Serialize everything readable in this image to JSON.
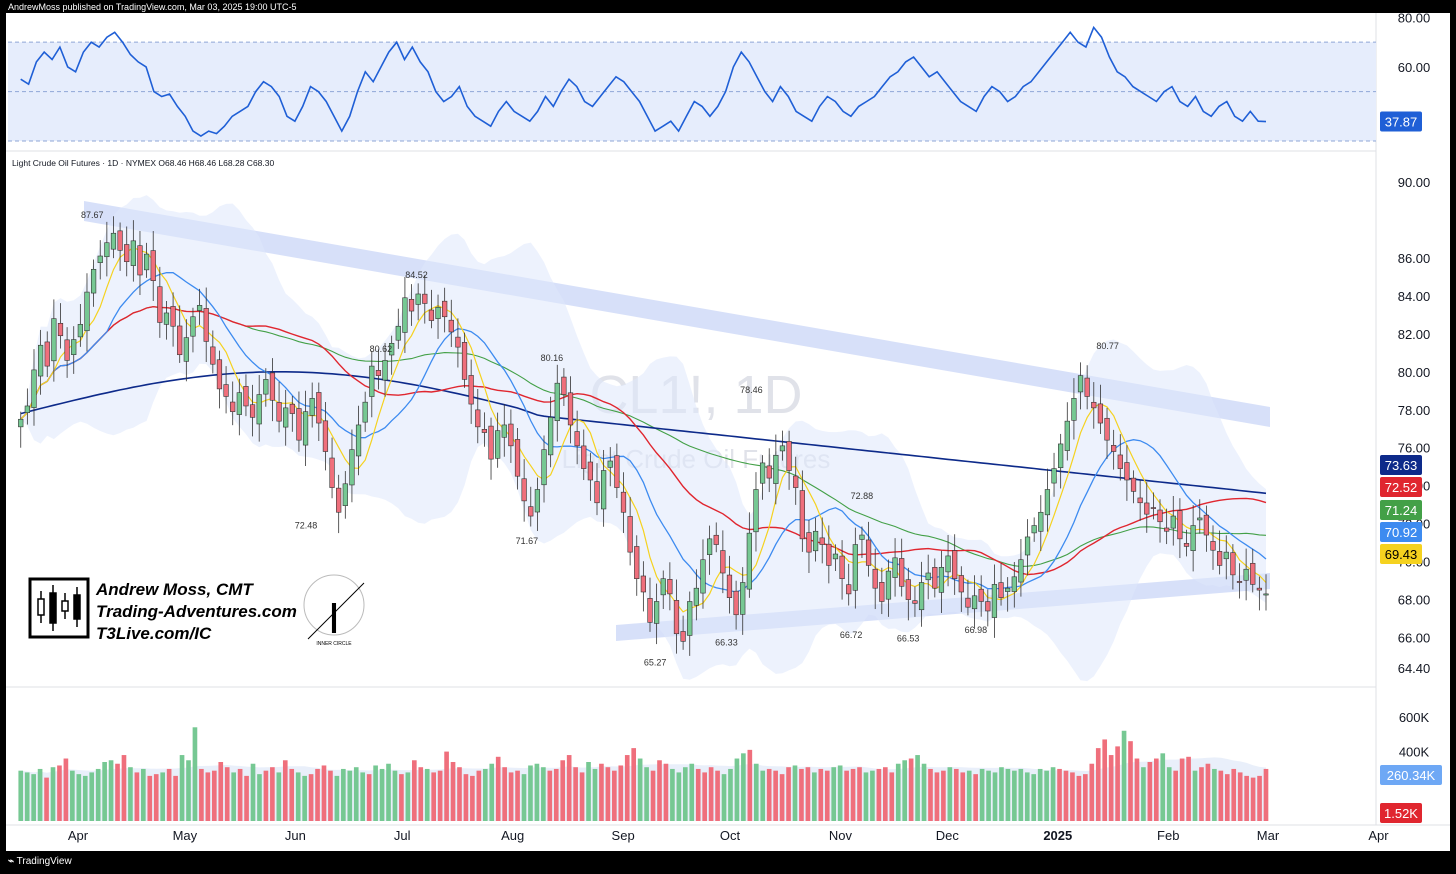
{
  "header": {
    "published": "AndrewMoss published on TradingView.com, Mar 03, 2025 19:00 UTC-5",
    "footer_brand": "TradingView"
  },
  "symbol": {
    "legend": "Light Crude Oil Futures · 1D · NYMEX  O68.46  H68.46  L68.28  C68.30",
    "watermark_symbol": "CL1!, 1D",
    "watermark_name": "Light Crude Oil Futures"
  },
  "branding": {
    "line1": "Andrew Moss, CMT",
    "line2": "Trading-Adventures.com",
    "line3": "T3Live.com/IC",
    "inner_circle": "INNER CIRCLE"
  },
  "colors": {
    "up": "#76c893",
    "down": "#ef6f7c",
    "ema_fast": "#f5d21f",
    "ema_mid": "#3d8bf0",
    "sma50": "#e0262f",
    "sma100": "#43a047",
    "sma200": "#0d2a8a",
    "rsi": "#1f5fd6",
    "band": "#c9d6f7"
  },
  "chart_data": [
    {
      "type": "line",
      "name": "rsi",
      "yaxis_ticks": [
        "80.00",
        "60.00"
      ],
      "ylim": [
        30,
        81
      ],
      "band": [
        30,
        70
      ],
      "last_value": "37.87",
      "values": [
        55,
        53,
        62,
        66,
        63,
        68,
        60,
        58,
        66,
        70,
        68,
        72,
        74,
        70,
        65,
        62,
        60,
        50,
        48,
        49,
        44,
        40,
        34,
        32,
        34,
        33,
        36,
        40,
        42,
        44,
        50,
        54,
        52,
        48,
        40,
        38,
        44,
        52,
        50,
        46,
        40,
        34,
        40,
        50,
        58,
        54,
        60,
        66,
        70,
        63,
        68,
        62,
        58,
        50,
        46,
        48,
        52,
        44,
        40,
        38,
        36,
        42,
        46,
        42,
        40,
        38,
        42,
        48,
        44,
        50,
        55,
        52,
        46,
        44,
        48,
        52,
        56,
        54,
        50,
        46,
        40,
        34,
        36,
        38,
        34,
        40,
        46,
        44,
        40,
        44,
        50,
        60,
        66,
        62,
        56,
        50,
        46,
        52,
        48,
        42,
        40,
        38,
        44,
        48,
        46,
        42,
        40,
        44,
        46,
        48,
        52,
        56,
        58,
        62,
        64,
        60,
        56,
        58,
        54,
        50,
        46,
        44,
        42,
        48,
        52,
        50,
        46,
        48,
        52,
        54,
        58,
        62,
        66,
        70,
        74,
        70,
        68,
        76,
        72,
        64,
        58,
        56,
        52,
        50,
        48,
        46,
        50,
        52,
        46,
        44,
        48,
        42,
        40,
        44,
        46,
        40,
        38,
        42,
        38,
        37.87
      ],
      "x_date_start": "2024-03-12",
      "x_date_end": "2025-02-28"
    },
    {
      "type": "candlestick",
      "name": "price",
      "ylim": [
        63.5,
        91
      ],
      "yaxis_ticks": [
        "90.00",
        "86.00",
        "84.00",
        "82.00",
        "80.00",
        "78.00",
        "76.00",
        "74.00",
        "72.00",
        "70.00",
        "68.00",
        "66.00",
        "64.40"
      ],
      "xaxis_ticks": [
        "Apr",
        "May",
        "Jun",
        "Jul",
        "Aug",
        "Sep",
        "Oct",
        "Nov",
        "Dec",
        "2025",
        "Feb",
        "Mar",
        "Apr"
      ],
      "peak_labels": [
        {
          "text": "87.67",
          "date": "2024-04-05",
          "price": 87.67
        },
        {
          "text": "72.48",
          "date": "2024-06-04",
          "price": 72.48
        },
        {
          "text": "80.62",
          "date": "2024-06-25",
          "price": 80.62
        },
        {
          "text": "84.52",
          "date": "2024-07-05",
          "price": 84.52
        },
        {
          "text": "71.67",
          "date": "2024-08-05",
          "price": 71.67
        },
        {
          "text": "80.16",
          "date": "2024-08-12",
          "price": 80.16
        },
        {
          "text": "65.27",
          "date": "2024-09-10",
          "price": 65.27
        },
        {
          "text": "66.33",
          "date": "2024-09-30",
          "price": 66.33
        },
        {
          "text": "78.46",
          "date": "2024-10-07",
          "price": 78.46
        },
        {
          "text": "72.88",
          "date": "2024-11-07",
          "price": 72.88
        },
        {
          "text": "66.72",
          "date": "2024-11-04",
          "price": 66.72
        },
        {
          "text": "66.53",
          "date": "2024-11-20",
          "price": 66.53
        },
        {
          "text": "66.98",
          "date": "2024-12-09",
          "price": 66.98
        },
        {
          "text": "80.77",
          "date": "2025-01-15",
          "price": 80.77
        }
      ],
      "closes": [
        77.5,
        78.2,
        80.1,
        81.4,
        80.3,
        82.8,
        81.9,
        80.6,
        81.7,
        82.5,
        84.2,
        85.4,
        86.1,
        86.8,
        87.3,
        86.4,
        85.8,
        86.9,
        85.1,
        86.2,
        84.8,
        82.6,
        83.1,
        82.4,
        80.9,
        81.8,
        82.9,
        83.5,
        81.6,
        80.4,
        79.1,
        78.7,
        77.9,
        78.9,
        78.2,
        77.6,
        78.8,
        79.6,
        78.5,
        77.4,
        78.1,
        77.8,
        76.4,
        77.9,
        78.6,
        77.3,
        75.8,
        73.9,
        72.6,
        74.1,
        75.9,
        77.2,
        78.4,
        80.3,
        79.8,
        80.6,
        81.5,
        82.4,
        83.9,
        83.2,
        84.1,
        83.6,
        82.7,
        83.4,
        82.9,
        82.1,
        81.3,
        79.6,
        78.3,
        77.1,
        76.8,
        75.4,
        76.9,
        77.2,
        76.1,
        74.5,
        73.2,
        72.4,
        73.8,
        75.9,
        77.6,
        79.4,
        78.8,
        77.2,
        76.1,
        74.9,
        74.3,
        73.1,
        74.8,
        75.3,
        73.9,
        72.6,
        70.5,
        69.1,
        68.4,
        66.8,
        67.9,
        69.1,
        68.3,
        66.2,
        65.8,
        67.9,
        68.6,
        70.1,
        71.2,
        70.9,
        69.4,
        68.1,
        67.2,
        68.9,
        71.5,
        73.8,
        75.2,
        74.4,
        75.6,
        76.1,
        74.8,
        73.9,
        71.2,
        70.5,
        71.6,
        70.9,
        69.8,
        70.4,
        69.1,
        68.3,
        70.9,
        71.4,
        69.8,
        68.6,
        67.9,
        69.5,
        70.2,
        68.7,
        68.0,
        67.8,
        68.9,
        69.4,
        68.6,
        69.7,
        70.3,
        69.1,
        68.4,
        67.6,
        68.2,
        67.9,
        67.4,
        68.8,
        68.1,
        68.6,
        69.2,
        70.1,
        71.3,
        71.9,
        72.6,
        73.8,
        74.9,
        76.2,
        77.4,
        78.6,
        79.8,
        78.7,
        78.1,
        77.3,
        76.4,
        75.8,
        74.9,
        74.3,
        73.7,
        73.1,
        72.5,
        72.8,
        72.1,
        71.6,
        72.4,
        71.2,
        70.8,
        71.9,
        72.3,
        71.4,
        70.6,
        69.8,
        70.5,
        69.3,
        68.9,
        69.6,
        68.8,
        68.5,
        68.3
      ]
    },
    {
      "type": "bar",
      "name": "volume",
      "ylim": [
        0,
        680
      ],
      "yaxis_ticks": [
        "600K",
        "400K"
      ],
      "last_volume": "260.34K",
      "last_bar_label": "1.52K",
      "values": [
        290,
        280,
        270,
        300,
        250,
        310,
        320,
        360,
        290,
        270,
        260,
        280,
        300,
        340,
        350,
        330,
        380,
        310,
        280,
        300,
        260,
        270,
        280,
        300,
        260,
        380,
        350,
        540,
        300,
        280,
        290,
        340,
        310,
        280,
        300,
        260,
        330,
        270,
        290,
        310,
        280,
        350,
        300,
        280,
        260,
        270,
        300,
        320,
        290,
        260,
        300,
        290,
        310,
        280,
        270,
        320,
        300,
        330,
        290,
        270,
        280,
        350,
        310,
        300,
        280,
        290,
        400,
        340,
        310,
        270,
        260,
        290,
        300,
        330,
        370,
        310,
        280,
        290,
        270,
        320,
        330,
        310,
        290,
        300,
        350,
        380,
        310,
        280,
        340,
        300,
        330,
        310,
        290,
        320,
        380,
        420,
        360,
        310,
        290,
        350,
        330,
        300,
        280,
        310,
        330,
        300,
        280,
        310,
        290,
        270,
        300,
        360,
        390,
        410,
        330,
        290,
        300,
        290,
        270,
        310,
        320,
        300,
        310,
        280,
        300,
        290,
        310,
        320,
        290,
        300,
        310,
        280,
        290,
        300,
        310,
        280,
        330,
        350,
        360,
        380,
        330,
        300,
        280,
        290,
        310,
        300,
        280,
        290,
        270,
        300,
        290,
        280,
        310,
        300,
        290,
        300,
        280,
        270,
        300,
        290,
        310,
        300,
        290,
        280,
        260,
        270,
        330,
        420,
        470,
        380,
        430,
        520,
        460,
        360,
        310,
        340,
        360,
        390,
        310,
        290,
        360,
        370,
        290,
        310,
        330,
        300,
        290,
        270,
        300,
        280,
        260,
        250,
        260,
        300
      ]
    }
  ]
}
